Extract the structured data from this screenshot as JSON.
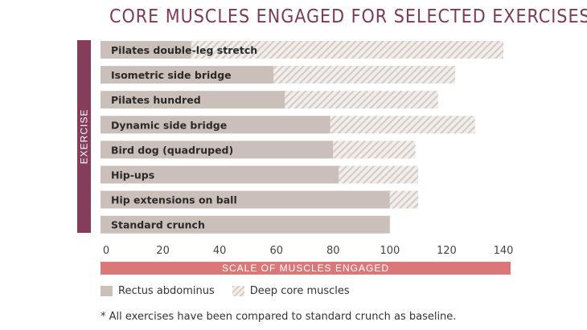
{
  "title": "CORE MUSCLES ENGAGED FOR SELECTED EXERCISES",
  "colors": {
    "title": "#7d3a55",
    "ylabel_bg": "#843e5b",
    "xlabel_bg": "#d97779",
    "rectus": "#cbbfb9",
    "deep_bg": "#f2eeeb",
    "deep_hatch": "#d6ccc6"
  },
  "legend": {
    "rectus": "Rectus abdominus",
    "deep": "Deep core muscles"
  },
  "footnote": "* All exercises have been compared to standard crunch as baseline.",
  "chart_data": {
    "type": "bar",
    "orientation": "horizontal",
    "stacked": true,
    "title": "CORE MUSCLES ENGAGED FOR SELECTED EXERCISES",
    "xlabel": "SCALE OF MUSCLES ENGAGED",
    "ylabel": "EXERCISE",
    "xlim": [
      0,
      140
    ],
    "xticks": [
      0,
      20,
      40,
      60,
      80,
      100,
      120,
      140
    ],
    "categories": [
      "Pilates double-leg stretch",
      "Isometric side bridge",
      "Pilates hundred",
      "Dynamic side bridge",
      "Bird dog (quadruped)",
      "Hip-ups",
      "Hip extensions on ball",
      "Standard crunch"
    ],
    "series": [
      {
        "name": "Rectus abdominus",
        "values": [
          30,
          59,
          63,
          79,
          80,
          82,
          100,
          100
        ]
      },
      {
        "name": "Deep core muscles",
        "values": [
          110,
          64,
          54,
          51,
          29,
          28,
          10,
          0
        ]
      }
    ]
  }
}
